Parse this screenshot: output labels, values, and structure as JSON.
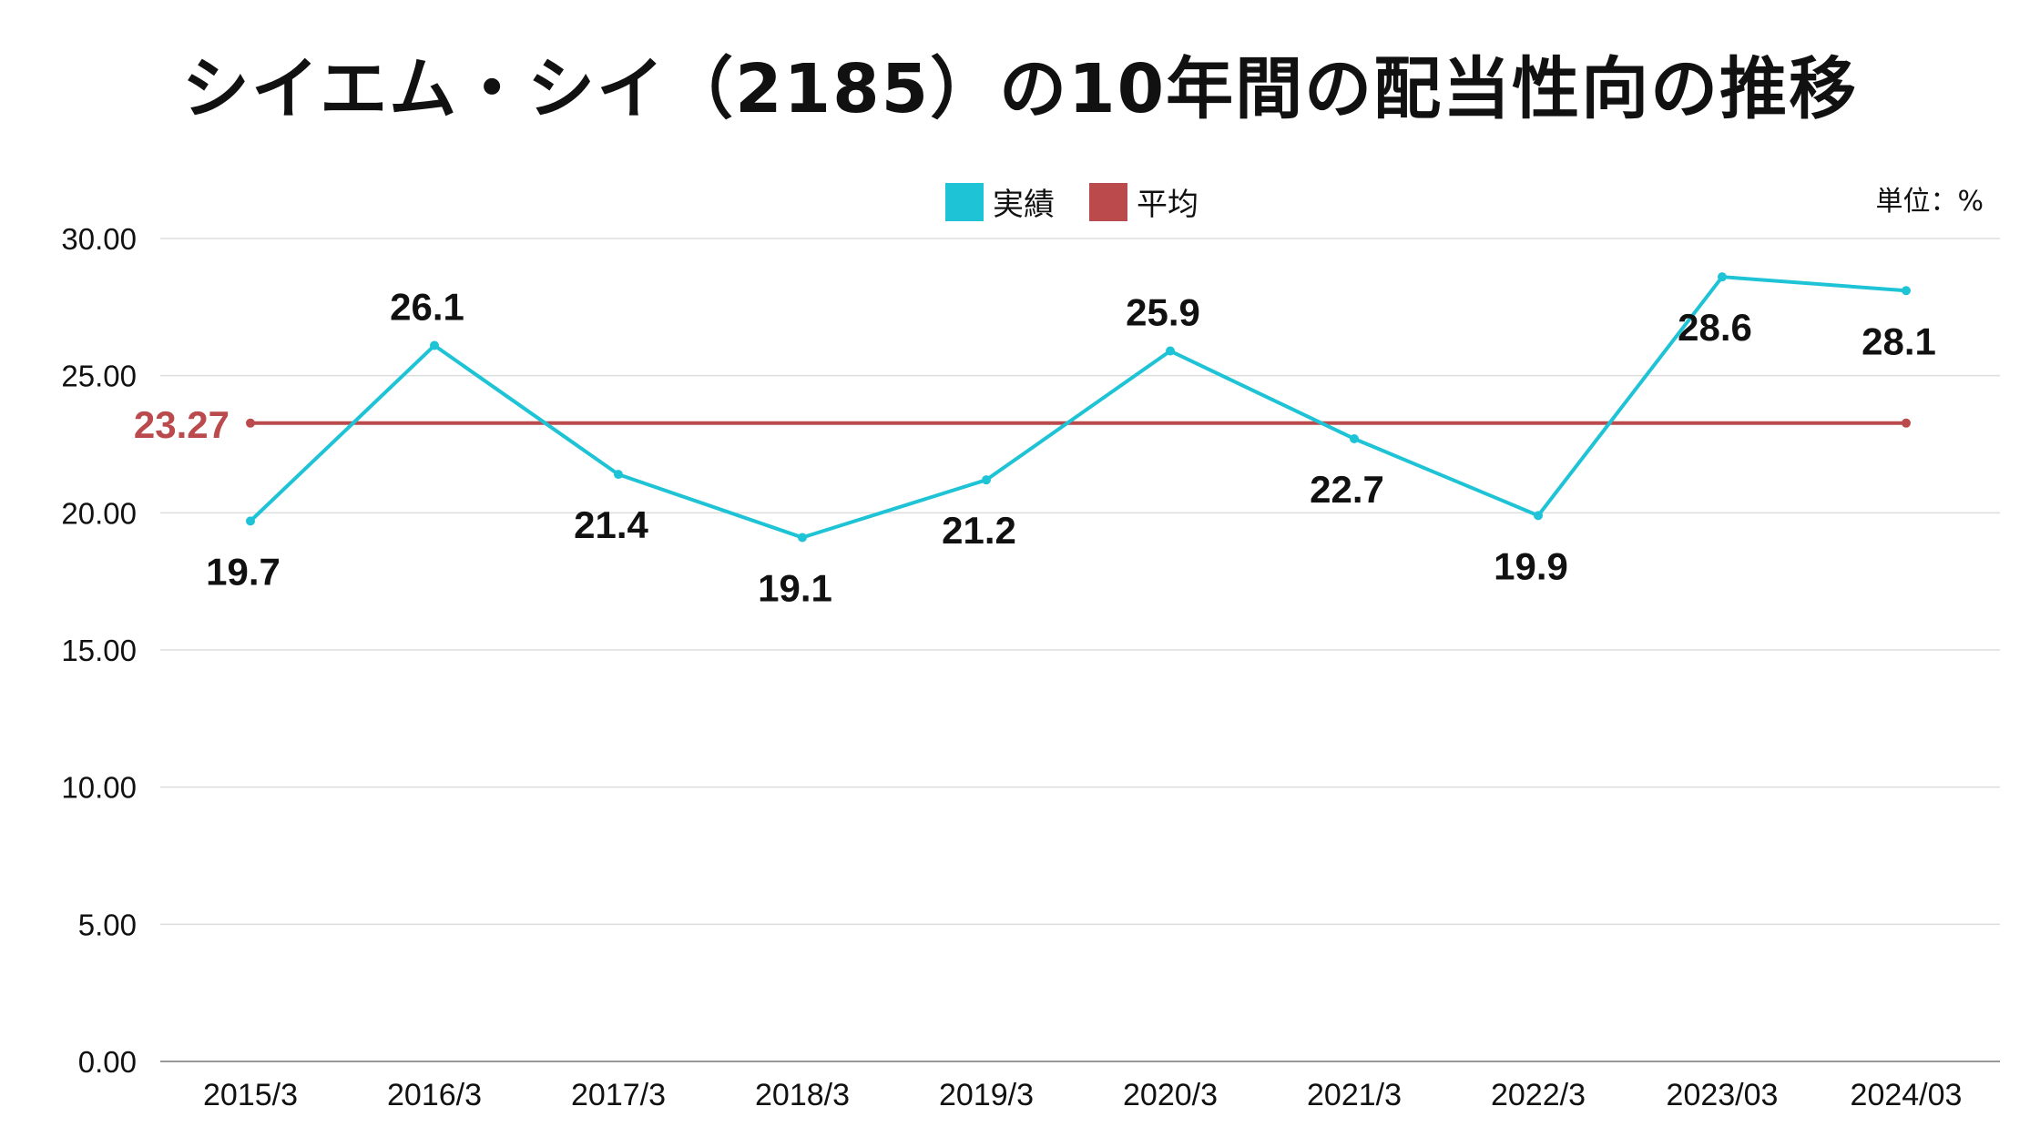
{
  "title": "シイエム・シイ（2185）の10年間の配当性向の推移",
  "unit": "単位：%",
  "colors": {
    "actual": "#1ec3d6",
    "average": "#bb4a4c",
    "grid": "#dddddd",
    "axis": "#999999"
  },
  "chart_data": {
    "type": "line",
    "title": "シイエム・シイ（2185）の10年間の配当性向の推移",
    "xlabel": "",
    "ylabel": "",
    "ylim": [
      0,
      30
    ],
    "yticks": [
      "0.00",
      "5.00",
      "10.00",
      "15.00",
      "20.00",
      "25.00",
      "30.00"
    ],
    "grid": true,
    "legend": "top-center",
    "categories": [
      "2015/3",
      "2016/3",
      "2017/3",
      "2018/3",
      "2019/3",
      "2020/3",
      "2021/3",
      "2022/3",
      "2023/03",
      "2024/03"
    ],
    "series": [
      {
        "name": "実績",
        "values": [
          19.7,
          26.1,
          21.4,
          19.1,
          21.2,
          25.9,
          22.7,
          19.9,
          28.6,
          28.1
        ],
        "labels": [
          "19.7",
          "26.1",
          "21.4",
          "19.1",
          "21.2",
          "25.9",
          "22.7",
          "19.9",
          "28.6",
          "28.1"
        ]
      },
      {
        "name": "平均",
        "value": 23.27,
        "label": "23.27"
      }
    ]
  }
}
